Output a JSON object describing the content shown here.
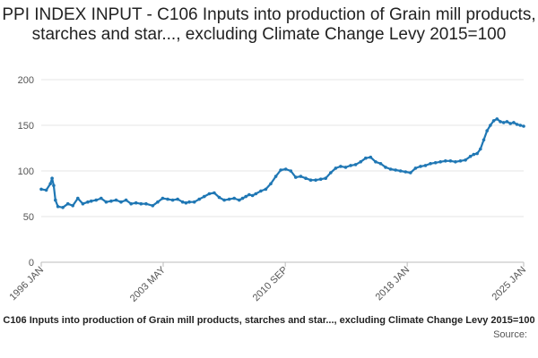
{
  "chart_data": {
    "type": "line",
    "title": "PPI INDEX INPUT - C106 Inputs into production of Grain mill products, starches and star..., excluding Climate Change Levy 2015=100",
    "xlabel": "",
    "ylabel": "",
    "ylim": [
      0,
      200
    ],
    "y_ticks": [
      0,
      50,
      100,
      150,
      200
    ],
    "x_tick_labels": [
      {
        "label": "1996 JAN",
        "year": 1996.0
      },
      {
        "label": "2003 MAY",
        "year": 2003.33
      },
      {
        "label": "2010 SEP",
        "year": 2010.67
      },
      {
        "label": "2018 JAN",
        "year": 2018.0
      },
      {
        "label": "2025 JAN",
        "year": 2025.0
      }
    ],
    "grid": true,
    "series_color": "#1f77b4",
    "series": [
      {
        "x": [
          1996.0,
          1996.3,
          1996.55,
          1996.65,
          1996.75,
          1996.85,
          1997.0,
          1997.3,
          1997.6,
          1997.9,
          1998.2,
          1998.5,
          1998.8,
          1999.0,
          1999.3,
          1999.6,
          1999.9,
          2000.2,
          2000.5,
          2000.8,
          2001.1,
          2001.4,
          2001.7,
          2002.0,
          2002.3,
          2002.7,
          2003.0,
          2003.3,
          2003.6,
          2003.9,
          2004.2,
          2004.5,
          2004.7,
          2004.9,
          2005.2,
          2005.5,
          2005.8,
          2006.1,
          2006.4,
          2006.7,
          2007.0,
          2007.3,
          2007.6,
          2007.9,
          2008.1,
          2008.3,
          2008.5,
          2008.7,
          2008.9,
          2009.2,
          2009.5,
          2009.8,
          2010.1,
          2010.4,
          2010.7,
          2011.0,
          2011.3,
          2011.6,
          2011.9,
          2012.2,
          2012.5,
          2012.8,
          2013.1,
          2013.4,
          2013.7,
          2014.0,
          2014.3,
          2014.6,
          2014.9,
          2015.2,
          2015.5,
          2015.8,
          2016.1,
          2016.4,
          2016.7,
          2017.0,
          2017.3,
          2017.6,
          2017.9,
          2018.2,
          2018.5,
          2018.8,
          2019.1,
          2019.4,
          2019.7,
          2020.0,
          2020.3,
          2020.6,
          2020.9,
          2021.2,
          2021.5,
          2021.8,
          2022.0,
          2022.2,
          2022.4,
          2022.6,
          2022.8,
          2023.0,
          2023.2,
          2023.4,
          2023.6,
          2023.8,
          2024.0,
          2024.2,
          2024.4,
          2024.6,
          2024.8,
          2025.0
        ],
        "values": [
          80,
          79,
          86,
          92,
          84,
          68,
          61,
          60,
          64,
          62,
          70,
          64,
          66,
          67,
          68,
          70,
          66,
          67,
          68,
          66,
          68,
          64,
          65,
          64,
          64,
          62,
          66,
          70,
          69,
          68,
          69,
          66,
          65,
          66,
          66,
          69,
          72,
          75,
          76,
          71,
          68,
          69,
          70,
          68,
          70,
          72,
          74,
          73,
          75,
          78,
          80,
          86,
          94,
          101,
          102,
          100,
          93,
          94,
          92,
          90,
          90,
          91,
          92,
          98,
          103,
          105,
          104,
          106,
          107,
          110,
          114,
          115,
          110,
          108,
          104,
          102,
          101,
          100,
          99,
          98,
          103,
          105,
          106,
          108,
          109,
          110,
          111,
          111,
          110,
          111,
          112,
          116,
          118,
          119,
          124,
          134,
          144,
          150,
          155,
          157,
          154,
          153,
          154,
          152,
          153,
          151,
          150,
          149
        ]
      }
    ],
    "series_caption": "C106 Inputs into production of Grain mill products, starches and star..., excluding Climate Change Levy 2015=100",
    "source_caption": "Source:"
  }
}
